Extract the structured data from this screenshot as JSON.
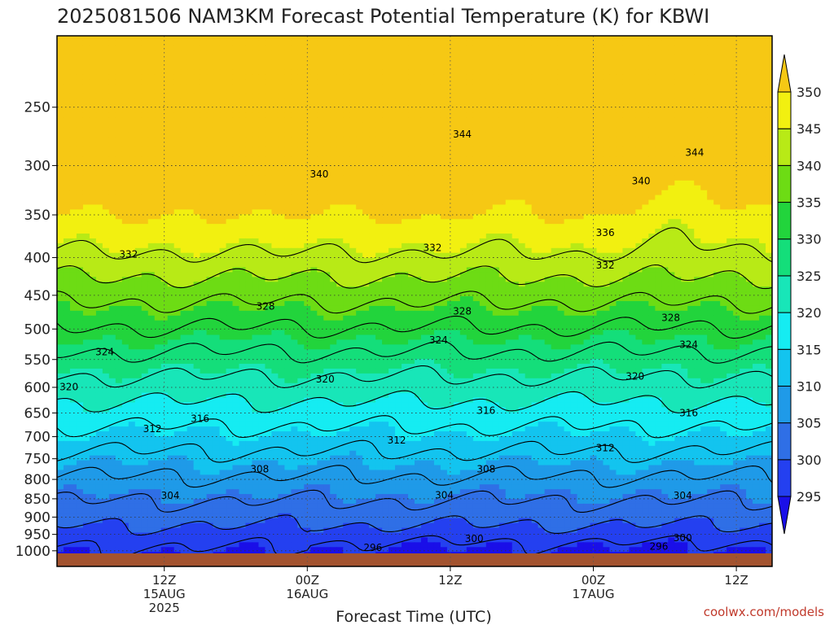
{
  "chart_data": {
    "type": "heatmap",
    "title": "2025081506 NAM3KM Forecast Potential Temperature (K) for KBWI",
    "xlabel": "Forecast Time (UTC)",
    "ylabel": "",
    "y_axis": {
      "scale": "log",
      "inverted": true,
      "range": [
        200,
        1050
      ],
      "ticks": [
        250,
        300,
        350,
        400,
        450,
        500,
        550,
        600,
        650,
        700,
        750,
        800,
        850,
        900,
        950,
        1000
      ]
    },
    "x_axis": {
      "range_hours": [
        -3,
        57
      ],
      "ticks": [
        {
          "hour": 6,
          "lines": [
            "12Z",
            "15AUG",
            "2025"
          ]
        },
        {
          "hour": 18,
          "lines": [
            "00Z",
            "16AUG"
          ]
        },
        {
          "hour": 30,
          "lines": [
            "12Z"
          ]
        },
        {
          "hour": 42,
          "lines": [
            "00Z",
            "17AUG"
          ]
        },
        {
          "hour": 54,
          "lines": [
            "12Z"
          ]
        }
      ]
    },
    "colorbar": {
      "levels": [
        295,
        300,
        305,
        310,
        315,
        320,
        325,
        330,
        335,
        340,
        345,
        350
      ],
      "colors": [
        "#1a0fe8",
        "#2440f0",
        "#2f6fe6",
        "#1f9ae8",
        "#13c4ef",
        "#15ecf2",
        "#18e6b8",
        "#14de7a",
        "#22d43c",
        "#6ddc14",
        "#b8ea16",
        "#f2f010",
        "#f6c814"
      ]
    },
    "contour_levels": [
      296,
      300,
      304,
      308,
      312,
      316,
      320,
      324,
      328,
      332,
      336,
      340,
      344
    ],
    "contour_labels": [
      {
        "value": "344",
        "hour": 31,
        "p": 272
      },
      {
        "value": "344",
        "hour": 50.5,
        "p": 288
      },
      {
        "value": "340",
        "hour": 19,
        "p": 308
      },
      {
        "value": "340",
        "hour": 46,
        "p": 315
      },
      {
        "value": "336",
        "hour": 43,
        "p": 370
      },
      {
        "value": "332",
        "hour": 3,
        "p": 396
      },
      {
        "value": "332",
        "hour": 28.5,
        "p": 388
      },
      {
        "value": "332",
        "hour": 43,
        "p": 410
      },
      {
        "value": "328",
        "hour": 14.5,
        "p": 466
      },
      {
        "value": "328",
        "hour": 31,
        "p": 473
      },
      {
        "value": "328",
        "hour": 48.5,
        "p": 483
      },
      {
        "value": "324",
        "hour": 1,
        "p": 537
      },
      {
        "value": "324",
        "hour": 29,
        "p": 518
      },
      {
        "value": "324",
        "hour": 50,
        "p": 525
      },
      {
        "value": "320",
        "hour": -2,
        "p": 599
      },
      {
        "value": "320",
        "hour": 19.5,
        "p": 585
      },
      {
        "value": "320",
        "hour": 45.5,
        "p": 580
      },
      {
        "value": "316",
        "hour": 9,
        "p": 662
      },
      {
        "value": "316",
        "hour": 33,
        "p": 645
      },
      {
        "value": "316",
        "hour": 50,
        "p": 650
      },
      {
        "value": "312",
        "hour": 5,
        "p": 683
      },
      {
        "value": "312",
        "hour": 25.5,
        "p": 708
      },
      {
        "value": "312",
        "hour": 43,
        "p": 725
      },
      {
        "value": "308",
        "hour": 14,
        "p": 775
      },
      {
        "value": "308",
        "hour": 33,
        "p": 775
      },
      {
        "value": "304",
        "hour": 6.5,
        "p": 842
      },
      {
        "value": "304",
        "hour": 29.5,
        "p": 840
      },
      {
        "value": "304",
        "hour": 49.5,
        "p": 842
      },
      {
        "value": "300",
        "hour": 32,
        "p": 963
      },
      {
        "value": "300",
        "hour": 49.5,
        "p": 960
      },
      {
        "value": "296",
        "hour": 23.5,
        "p": 990
      },
      {
        "value": "296",
        "hour": 47.5,
        "p": 986
      }
    ],
    "grid": true,
    "legend": "right",
    "credit": "coolwx.com/models"
  }
}
